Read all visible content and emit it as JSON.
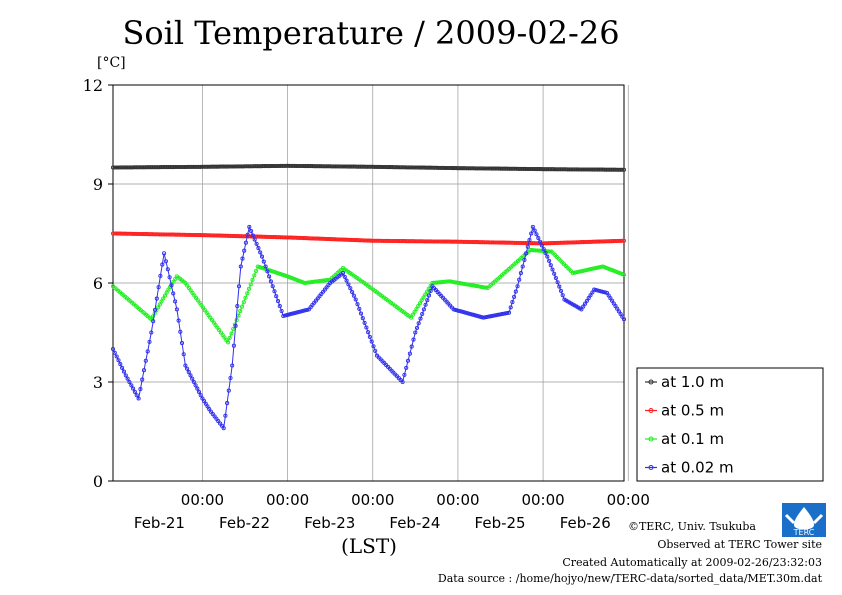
{
  "title": "Soil Temperature / 2009-02-26",
  "footer": {
    "copyright": "©TERC, Univ. Tsukuba",
    "site": "Observed at TERC Tower site",
    "created": "Created Automatically at 2009-02-26/23:32:03",
    "source": "Data source : /home/hojyo/new/TERC-data/sorted_data/MET.30m.dat",
    "logo_text": "TERC"
  },
  "chart_data": {
    "type": "line",
    "title": "Soil Temperature / 2009-02-26",
    "ylabel": "[°C]",
    "xlabel": "(LST)",
    "ylim": [
      0,
      12
    ],
    "yticks": [
      0,
      3,
      6,
      9,
      12
    ],
    "xlim": [
      -1.05,
      4.95
    ],
    "xticks": [
      {
        "x": 0,
        "time": "00:00",
        "date": "Feb-21"
      },
      {
        "x": 1,
        "time": "00:00",
        "date": "Feb-22"
      },
      {
        "x": 2,
        "time": "00:00",
        "date": "Feb-23"
      },
      {
        "x": 3,
        "time": "00:00",
        "date": "Feb-24"
      },
      {
        "x": 4,
        "time": "00:00",
        "date": "Feb-25"
      },
      {
        "x": 5,
        "time": "00:00",
        "date": "Feb-26"
      }
    ],
    "grid": true,
    "legend_position": "right",
    "series": [
      {
        "name": "at 1.0 m",
        "color": "#333333",
        "points": [
          [
            -1.05,
            9.5
          ],
          [
            0,
            9.52
          ],
          [
            1,
            9.55
          ],
          [
            2,
            9.52
          ],
          [
            3,
            9.48
          ],
          [
            4,
            9.45
          ],
          [
            4.95,
            9.43
          ]
        ]
      },
      {
        "name": "at 0.5 m",
        "color": "#ff2020",
        "points": [
          [
            -1.05,
            7.5
          ],
          [
            0,
            7.45
          ],
          [
            1,
            7.38
          ],
          [
            2,
            7.28
          ],
          [
            3,
            7.25
          ],
          [
            4,
            7.2
          ],
          [
            4.95,
            7.28
          ]
        ]
      },
      {
        "name": "at 0.1 m",
        "color": "#22ee22",
        "points": [
          [
            -1.05,
            5.9
          ],
          [
            -0.6,
            4.9
          ],
          [
            -0.4,
            5.8
          ],
          [
            -0.3,
            6.2
          ],
          [
            -0.2,
            6.0
          ],
          [
            0.3,
            4.2
          ],
          [
            0.65,
            6.5
          ],
          [
            1,
            6.2
          ],
          [
            1.2,
            6.0
          ],
          [
            1.5,
            6.1
          ],
          [
            1.65,
            6.45
          ],
          [
            1.9,
            6.0
          ],
          [
            2.45,
            4.95
          ],
          [
            2.7,
            6.0
          ],
          [
            2.9,
            6.05
          ],
          [
            3.35,
            5.85
          ],
          [
            3.85,
            7.0
          ],
          [
            4.1,
            6.95
          ],
          [
            4.35,
            6.3
          ],
          [
            4.7,
            6.5
          ],
          [
            4.95,
            6.25
          ]
        ]
      },
      {
        "name": "at 0.02 m",
        "color": "#3030ee",
        "points": [
          [
            -1.05,
            4.0
          ],
          [
            -0.9,
            3.2
          ],
          [
            -0.75,
            2.5
          ],
          [
            -0.6,
            4.5
          ],
          [
            -0.45,
            6.9
          ],
          [
            -0.3,
            5.2
          ],
          [
            -0.2,
            3.5
          ],
          [
            0,
            2.5
          ],
          [
            0.1,
            2.1
          ],
          [
            0.25,
            1.6
          ],
          [
            0.35,
            3.5
          ],
          [
            0.45,
            6.5
          ],
          [
            0.55,
            7.7
          ],
          [
            0.7,
            6.8
          ],
          [
            0.95,
            5.0
          ],
          [
            1.25,
            5.2
          ],
          [
            1.5,
            6.0
          ],
          [
            1.65,
            6.3
          ],
          [
            1.8,
            5.5
          ],
          [
            2.05,
            3.8
          ],
          [
            2.35,
            3.0
          ],
          [
            2.5,
            4.5
          ],
          [
            2.7,
            5.9
          ],
          [
            2.95,
            5.2
          ],
          [
            3.3,
            4.95
          ],
          [
            3.6,
            5.1
          ],
          [
            3.7,
            5.9
          ],
          [
            3.88,
            7.7
          ],
          [
            4.05,
            6.8
          ],
          [
            4.25,
            5.5
          ],
          [
            4.45,
            5.2
          ],
          [
            4.6,
            5.8
          ],
          [
            4.75,
            5.7
          ],
          [
            4.95,
            4.9
          ]
        ]
      }
    ]
  }
}
